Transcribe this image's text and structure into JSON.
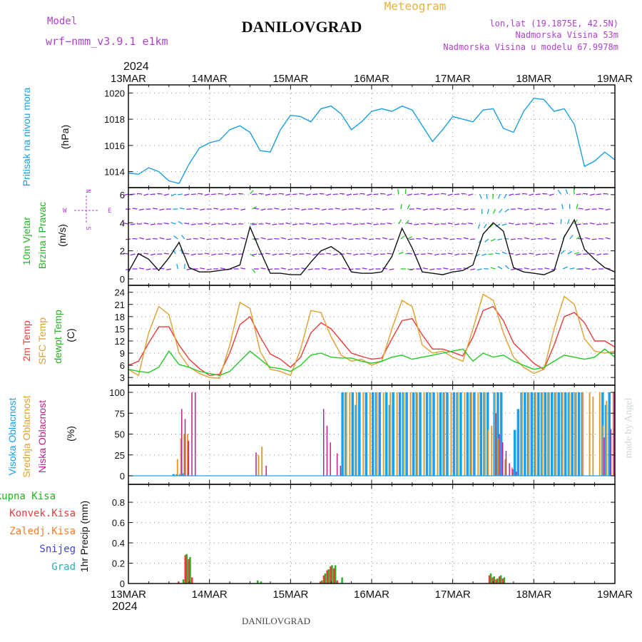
{
  "header": {
    "model_label": "Model",
    "model_name": "wrf−nmm_v3.9.1 e1km",
    "station": "DANILOVGRAD",
    "meteogram": "Meteogram",
    "lonlat": "lon,lat (19.1875E, 42.5N)",
    "alt": "Nadmorska Visina 53m",
    "alt_model": "Nadmorska Visina u modelu 67.9978m",
    "footer_station": "DANILOVGRAD",
    "credit": "made by Angel"
  },
  "time_axis": {
    "year": "2024",
    "ticks": [
      "13MAR",
      "14MAR",
      "15MAR",
      "16MAR",
      "17MAR",
      "18MAR",
      "19MAR"
    ]
  },
  "compass": {
    "n": "N",
    "s": "S",
    "e": "E",
    "w": "W"
  },
  "panels": {
    "pressure": {
      "name": "Pritisak na nivou mora",
      "unit": "(hPa)"
    },
    "wind": {
      "name1": "10m Vjetar",
      "name2": "Brzina i Pravac",
      "unit": "(m/s)"
    },
    "temp": {
      "name1": "2m Temp",
      "name2": "SFC Temp",
      "name3": "dewpt Temp",
      "unit": "(C)"
    },
    "cloud": {
      "name1": "Visoka Oblacnost",
      "name2": "Srednja Oblacnost",
      "name3": "Niska Oblacnost",
      "unit": "(%)"
    },
    "precip": {
      "names": [
        "Ukupna Kisa",
        "Konvek.Kisa",
        "Zaledj.Kisa",
        "Snijeg",
        "Grad"
      ],
      "unit": "1hr Precip (mm)"
    }
  },
  "colors": {
    "pressure": "#1aa0e0",
    "temp2m": "#e83c3c",
    "sfctemp": "#e0a030",
    "dewpt": "#22cc22",
    "high_cloud": "#1aa0f0",
    "mid_cloud": "#e0a030",
    "low_cloud": "#c0208c",
    "total_rain": "#22b422",
    "conv_rain": "#e83c3c",
    "frz_rain": "#f08030",
    "snow": "#4040e0",
    "hail": "#20b4b4",
    "purple_text": "#b040d0",
    "gold_text": "#e8b040"
  },
  "chart_data": [
    {
      "type": "line",
      "title": "Pritisak na nivou mora",
      "ylabel": "(hPa)",
      "ylim": [
        1013,
        1020.4
      ],
      "yticks": [
        1014,
        1016,
        1018,
        1020
      ],
      "grid": true,
      "series": [
        {
          "name": "Pritisak na nivou mora",
          "x": [
            0,
            3,
            6,
            9,
            12,
            15,
            18,
            21,
            24,
            27,
            30,
            33,
            36,
            39,
            42,
            45,
            48,
            51,
            54,
            57,
            60,
            63,
            66,
            69,
            72,
            75,
            78,
            81,
            84,
            87,
            90,
            93,
            96,
            99,
            102,
            105,
            108,
            111,
            114,
            117,
            120,
            123,
            126,
            129,
            132,
            135,
            138,
            141,
            144
          ],
          "values": [
            1013.9,
            1013.8,
            1014.3,
            1014.0,
            1013.3,
            1013.1,
            1014.6,
            1015.8,
            1016.2,
            1016.4,
            1017.2,
            1017.5,
            1017.0,
            1015.6,
            1015.5,
            1017.2,
            1018.3,
            1018.2,
            1017.8,
            1018.8,
            1019.0,
            1018.4,
            1017.2,
            1017.8,
            1018.6,
            1018.8,
            1018.6,
            1019.0,
            1018.7,
            1017.5,
            1016.3,
            1017.2,
            1018.2,
            1018.0,
            1017.8,
            1018.7,
            1018.8,
            1017.3,
            1017.0,
            1018.6,
            1019.6,
            1019.5,
            1018.6,
            1018.8,
            1017.6,
            1014.4,
            1014.8,
            1015.5,
            1014.9
          ]
        }
      ]
    },
    {
      "type": "line",
      "title": "10m Vjetar Brzina i Pravac",
      "ylabel": "(m/s)",
      "ylim": [
        0,
        6.3
      ],
      "yticks": [
        0,
        2,
        4,
        6
      ],
      "grid": true,
      "series": [
        {
          "name": "10m Vjetar",
          "x": [
            0,
            3,
            6,
            9,
            12,
            15,
            18,
            21,
            24,
            27,
            30,
            33,
            36,
            39,
            42,
            45,
            48,
            51,
            54,
            57,
            60,
            63,
            66,
            69,
            72,
            75,
            78,
            81,
            84,
            87,
            90,
            93,
            96,
            99,
            102,
            105,
            108,
            111,
            114,
            117,
            120,
            123,
            126,
            129,
            132,
            135,
            138,
            141,
            144
          ],
          "values": [
            0.5,
            1.8,
            1.4,
            0.6,
            1.5,
            2.6,
            0.8,
            0.5,
            0.5,
            0.6,
            0.7,
            1.0,
            3.7,
            2.0,
            0.4,
            0.4,
            0.3,
            0.3,
            1.2,
            2.0,
            2.3,
            1.8,
            0.5,
            0.4,
            0.4,
            0.5,
            1.6,
            3.6,
            2.2,
            0.5,
            0.4,
            0.3,
            0.5,
            0.6,
            1.0,
            3.2,
            4.0,
            3.4,
            0.8,
            0.5,
            0.4,
            0.3,
            0.6,
            3.0,
            4.2,
            2.1,
            1.4,
            0.8,
            0.5
          ]
        }
      ]
    },
    {
      "type": "line",
      "title": "2m Temp / SFC Temp / dewpt Temp",
      "ylabel": "(C)",
      "ylim": [
        1.8,
        25
      ],
      "yticks": [
        3,
        6,
        9,
        12,
        15,
        18,
        21,
        24
      ],
      "grid": true,
      "series": [
        {
          "name": "2m Temp",
          "x": [
            0,
            3,
            6,
            9,
            12,
            15,
            18,
            21,
            24,
            27,
            30,
            33,
            36,
            39,
            42,
            45,
            48,
            51,
            54,
            57,
            60,
            63,
            66,
            69,
            72,
            75,
            78,
            81,
            84,
            87,
            90,
            93,
            96,
            99,
            102,
            105,
            108,
            111,
            114,
            117,
            120,
            123,
            126,
            129,
            132,
            135,
            138,
            141,
            144
          ],
          "values": [
            6.0,
            7.0,
            11.5,
            15.5,
            15.5,
            11.0,
            7.5,
            5.2,
            3.5,
            3.8,
            9.0,
            16.0,
            18.0,
            13.0,
            8.8,
            7.5,
            5.5,
            8.0,
            14.0,
            16.5,
            15.0,
            12.0,
            9.0,
            8.2,
            7.5,
            7.8,
            12.5,
            17.0,
            17.5,
            13.5,
            10.0,
            10.0,
            9.2,
            8.3,
            13.0,
            19.5,
            20.5,
            17.0,
            11.5,
            9.0,
            6.5,
            5.0,
            11.0,
            18.0,
            19.0,
            16.5,
            12.0,
            12.0,
            10.5
          ]
        },
        {
          "name": "SFC Temp",
          "x": [
            0,
            3,
            6,
            9,
            12,
            15,
            18,
            21,
            24,
            27,
            30,
            33,
            36,
            39,
            42,
            45,
            48,
            51,
            54,
            57,
            60,
            63,
            66,
            69,
            72,
            75,
            78,
            81,
            84,
            87,
            90,
            93,
            96,
            99,
            102,
            105,
            108,
            111,
            114,
            117,
            120,
            123,
            126,
            129,
            132,
            135,
            138,
            141,
            144
          ],
          "values": [
            5.0,
            3.5,
            14.0,
            20.5,
            18.5,
            9.0,
            5.5,
            4.0,
            3.0,
            2.8,
            11.0,
            21.5,
            20.0,
            9.5,
            5.0,
            4.5,
            3.5,
            10.0,
            19.5,
            19.0,
            13.0,
            8.5,
            7.0,
            7.5,
            6.0,
            7.0,
            15.0,
            22.0,
            20.5,
            11.0,
            9.0,
            9.5,
            8.0,
            7.0,
            15.0,
            23.5,
            22.0,
            14.0,
            8.0,
            5.5,
            4.0,
            5.0,
            15.0,
            23.0,
            21.0,
            12.5,
            9.5,
            9.0,
            9.5
          ]
        },
        {
          "name": "dewpt Temp",
          "x": [
            0,
            3,
            6,
            9,
            12,
            15,
            18,
            21,
            24,
            27,
            30,
            33,
            36,
            39,
            42,
            45,
            48,
            51,
            54,
            57,
            60,
            63,
            66,
            69,
            72,
            75,
            78,
            81,
            84,
            87,
            90,
            93,
            96,
            99,
            102,
            105,
            108,
            111,
            114,
            117,
            120,
            123,
            126,
            129,
            132,
            135,
            138,
            141,
            144
          ],
          "values": [
            5.0,
            4.5,
            4.2,
            5.5,
            9.5,
            6.2,
            5.5,
            4.5,
            4.0,
            3.5,
            4.5,
            7.0,
            9.5,
            7.5,
            5.5,
            5.2,
            4.5,
            6.0,
            8.5,
            9.0,
            8.0,
            7.8,
            7.8,
            7.0,
            6.5,
            7.0,
            8.0,
            8.5,
            7.5,
            8.0,
            8.5,
            9.0,
            9.5,
            10.0,
            7.0,
            9.0,
            8.0,
            8.5,
            7.0,
            6.0,
            5.0,
            5.5,
            7.0,
            8.5,
            8.0,
            7.5,
            8.0,
            10.0,
            8.0
          ]
        }
      ]
    },
    {
      "type": "bar",
      "title": "Visoka / Srednja / Niska Oblacnost",
      "ylabel": "(%)",
      "ylim": [
        0,
        100
      ],
      "yticks": [
        0,
        25,
        50,
        75,
        100
      ],
      "grid": true,
      "series": [
        {
          "name": "Visoka Oblacnost",
          "x": [
            13,
            14,
            15,
            16,
            63,
            64,
            66,
            67,
            68,
            70,
            72,
            73,
            74,
            76,
            77,
            78,
            80,
            81,
            82,
            84,
            85,
            86,
            88,
            89,
            90,
            92,
            93,
            94,
            96,
            97,
            98,
            100,
            101,
            102,
            104,
            105,
            106,
            108,
            109,
            110,
            114,
            115,
            116,
            117,
            118,
            119,
            120,
            121,
            122,
            123,
            124,
            125,
            126,
            127,
            128,
            129,
            130,
            131,
            132,
            133,
            134,
            140,
            141,
            142
          ],
          "values": [
            2,
            2,
            2,
            3,
            100,
            100,
            100,
            85,
            100,
            100,
            100,
            100,
            100,
            100,
            85,
            100,
            100,
            100,
            100,
            100,
            100,
            100,
            100,
            100,
            100,
            100,
            100,
            100,
            100,
            100,
            100,
            100,
            100,
            100,
            100,
            100,
            100,
            100,
            100,
            100,
            55,
            80,
            100,
            100,
            100,
            100,
            100,
            100,
            100,
            100,
            100,
            100,
            100,
            100,
            100,
            100,
            100,
            100,
            100,
            100,
            100,
            100,
            85,
            100
          ]
        },
        {
          "name": "Srednja Oblacnost",
          "x": [
            14,
            15,
            16,
            17,
            38,
            39,
            64,
            65,
            67,
            69,
            71,
            73,
            75,
            77,
            79,
            81,
            83,
            85,
            87,
            89,
            91,
            93,
            95,
            97,
            99,
            101,
            103,
            105,
            106,
            107,
            108,
            109,
            111,
            113,
            116,
            118,
            120,
            122,
            124,
            126,
            128,
            130,
            132,
            134,
            136,
            137,
            139,
            140,
            141,
            143
          ],
          "values": [
            20,
            45,
            50,
            50,
            25,
            35,
            100,
            100,
            100,
            100,
            100,
            100,
            100,
            100,
            100,
            100,
            100,
            100,
            100,
            100,
            100,
            100,
            100,
            100,
            100,
            100,
            100,
            100,
            55,
            60,
            100,
            45,
            20,
            10,
            100,
            100,
            100,
            100,
            100,
            100,
            100,
            100,
            100,
            100,
            100,
            95,
            100,
            60,
            90,
            100
          ]
        },
        {
          "name": "Niska Oblacnost",
          "x": [
            15,
            16,
            17,
            18,
            19,
            37,
            40,
            57,
            58,
            59,
            61,
            62,
            108,
            109,
            110,
            111,
            112,
            113,
            114,
            140,
            142,
            143
          ],
          "values": [
            80,
            68,
            42,
            100,
            100,
            28,
            12,
            80,
            60,
            40,
            27,
            12,
            75,
            50,
            40,
            30,
            15,
            8,
            5,
            46,
            56,
            100
          ]
        }
      ]
    },
    {
      "type": "bar",
      "title": "1hr Precip (mm)",
      "ylabel": "1hr Precip (mm)",
      "ylim": [
        0,
        0.92
      ],
      "yticks": [
        0,
        0.2,
        0.4,
        0.6,
        0.8
      ],
      "grid": true,
      "series": [
        {
          "name": "Ukupna Kisa",
          "x": [
            16,
            17,
            18,
            38,
            39,
            57,
            58,
            59,
            60,
            61,
            63,
            107,
            108,
            109,
            110,
            111
          ],
          "values": [
            0.04,
            0.29,
            0.26,
            0.03,
            0.02,
            0.03,
            0.1,
            0.14,
            0.18,
            0.18,
            0.06,
            0.1,
            0.07,
            0.05,
            0.08,
            0.06
          ]
        },
        {
          "name": "Konvek.Kisa",
          "x": [
            15,
            17,
            18,
            19,
            57,
            58,
            59,
            60,
            61,
            62,
            107,
            108,
            109,
            110,
            111
          ],
          "values": [
            0.02,
            0.28,
            0.24,
            0.06,
            0.02,
            0.08,
            0.13,
            0.17,
            0.15,
            0.03,
            0.08,
            0.06,
            0.04,
            0.07,
            0.05
          ]
        }
      ]
    }
  ]
}
